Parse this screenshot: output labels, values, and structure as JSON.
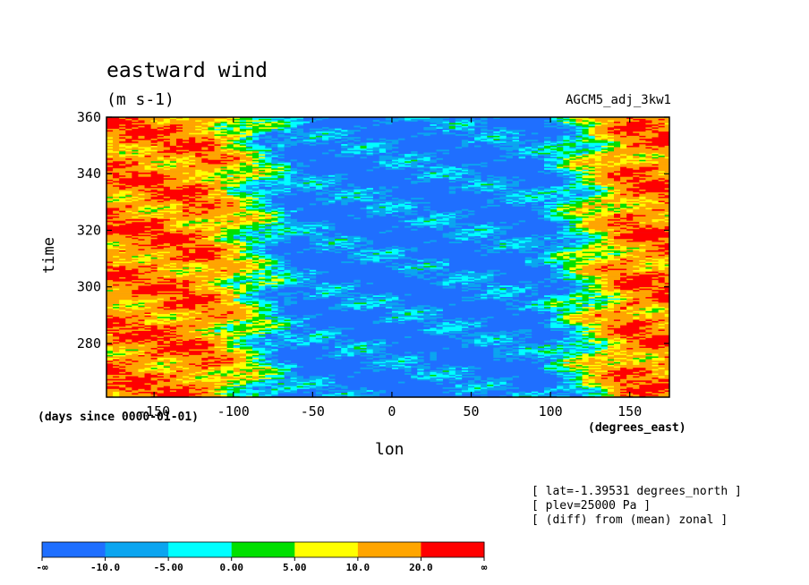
{
  "chart_data": {
    "type": "heatmap",
    "title": "eastward wind",
    "subtitle": "(m s-1)",
    "run_name": "AGCM5_adj_3kw1",
    "xlabel": "lon",
    "x_units": "(degrees_east)",
    "ylabel": "time",
    "y_units": "(days since 0000-01-01)",
    "xlim": [
      -180,
      175
    ],
    "ylim": [
      261,
      360
    ],
    "x_ticks": [
      -150,
      -100,
      -50,
      0,
      50,
      100,
      150
    ],
    "x_tick_labels": [
      "-150",
      "-100",
      "-50",
      "0",
      "50",
      "100",
      "150"
    ],
    "y_ticks": [
      280,
      300,
      320,
      340,
      360
    ],
    "y_tick_labels": [
      "280",
      "300",
      "320",
      "340",
      "360"
    ],
    "info_lines": [
      "[ lat=-1.39531 degrees_north ]",
      "[ plev=25000 Pa ]",
      "[ (diff) from (mean) zonal ]"
    ],
    "colorbar": {
      "levels": [
        "-∞",
        "-10.0",
        "-5.00",
        "0.00",
        "5.00",
        "10.0",
        "20.0",
        "∞"
      ],
      "colors": [
        "#1f6fff",
        "#0ba5f0",
        "#00ffff",
        "#00e000",
        "#ffff00",
        "#ffa500",
        "#ff0000"
      ]
    },
    "pattern": "westerly anomalies (red/orange, >10 m/s) west of about -80 and east of about 110 degrees east; easterly anomalies (blue, <-10 m/s) between about -60 and 100 degrees east throughout days 261-360"
  }
}
